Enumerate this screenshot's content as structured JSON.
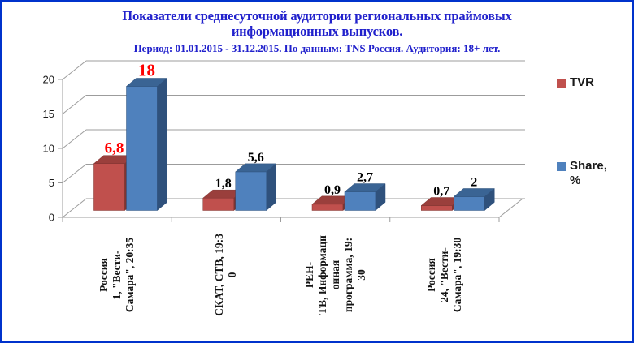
{
  "header": {
    "title_line1": "Показатели среднесуточной аудитории региональных праймовых",
    "title_line2": "информационных выпусков.",
    "subtitle": "Период: 01.01.2015 - 31.12.2015. По данным: TNS Россия. Аудитория: 18+ лет.",
    "title_color": "#2121CC",
    "border_color": "#0032CC"
  },
  "legend": {
    "position": "right",
    "items": [
      {
        "label": "TVR",
        "color": "#C0504D"
      },
      {
        "label": "Share,\n%",
        "color": "#4F81BD"
      }
    ]
  },
  "chart_data": {
    "type": "bar",
    "style": "3d-clustered-column",
    "title": "Показатели среднесуточной аудитории региональных праймовых информационных выпусков.",
    "subtitle": "Период: 01.01.2015 - 31.12.2015. По данным: TNS Россия. Аудитория: 18+ лет.",
    "grid": true,
    "legend_position": "right",
    "gridline_color": "#9C9C9C",
    "y_axis": {
      "min": 0,
      "max": 20,
      "ticks": [
        0,
        5,
        10,
        15,
        20
      ]
    },
    "categories": [
      {
        "full": "Россия 1, \"Вести-Самара\", 20:35",
        "lines": [
          "Россия",
          "1, \"Вести-",
          "Самара\", 20:35"
        ]
      },
      {
        "full": "СКАТ, СТВ, 19:30",
        "lines": [
          "СКАТ, СТВ, 19:3",
          "0"
        ]
      },
      {
        "full": "РЕН-ТВ, Информационная программа, 19:30",
        "lines": [
          "РЕН-",
          "ТВ, Информаци",
          "онная",
          "программа, 19:",
          "30"
        ]
      },
      {
        "full": "Россия 24, \"Вести-Самара\", 19:30",
        "lines": [
          "Россия",
          "24, \"Вести-",
          "Самара\", 19:30"
        ]
      }
    ],
    "series": [
      {
        "name": "TVR",
        "values": [
          6.8,
          1.8,
          0.9,
          0.7
        ],
        "data_labels": [
          {
            "text": "6,8",
            "color": "#FF0000",
            "size": 19
          },
          {
            "text": "1,8",
            "color": "#000000",
            "size": 16
          },
          {
            "text": "0,9",
            "color": "#000000",
            "size": 16
          },
          {
            "text": "0,7",
            "color": "#000000",
            "size": 16
          }
        ],
        "face_colors": {
          "front": "#C0504D",
          "top": "#9A3F3C",
          "side": "#7F3431"
        }
      },
      {
        "name": "Share, %",
        "values": [
          18,
          5.6,
          2.7,
          2
        ],
        "data_labels": [
          {
            "text": "18",
            "color": "#FF0000",
            "size": 21
          },
          {
            "text": "5,6",
            "color": "#000000",
            "size": 16
          },
          {
            "text": "2,7",
            "color": "#000000",
            "size": 16
          },
          {
            "text": "2",
            "color": "#000000",
            "size": 16
          }
        ],
        "face_colors": {
          "front": "#4F81BD",
          "top": "#3A6494",
          "side": "#2F517C"
        }
      }
    ]
  }
}
